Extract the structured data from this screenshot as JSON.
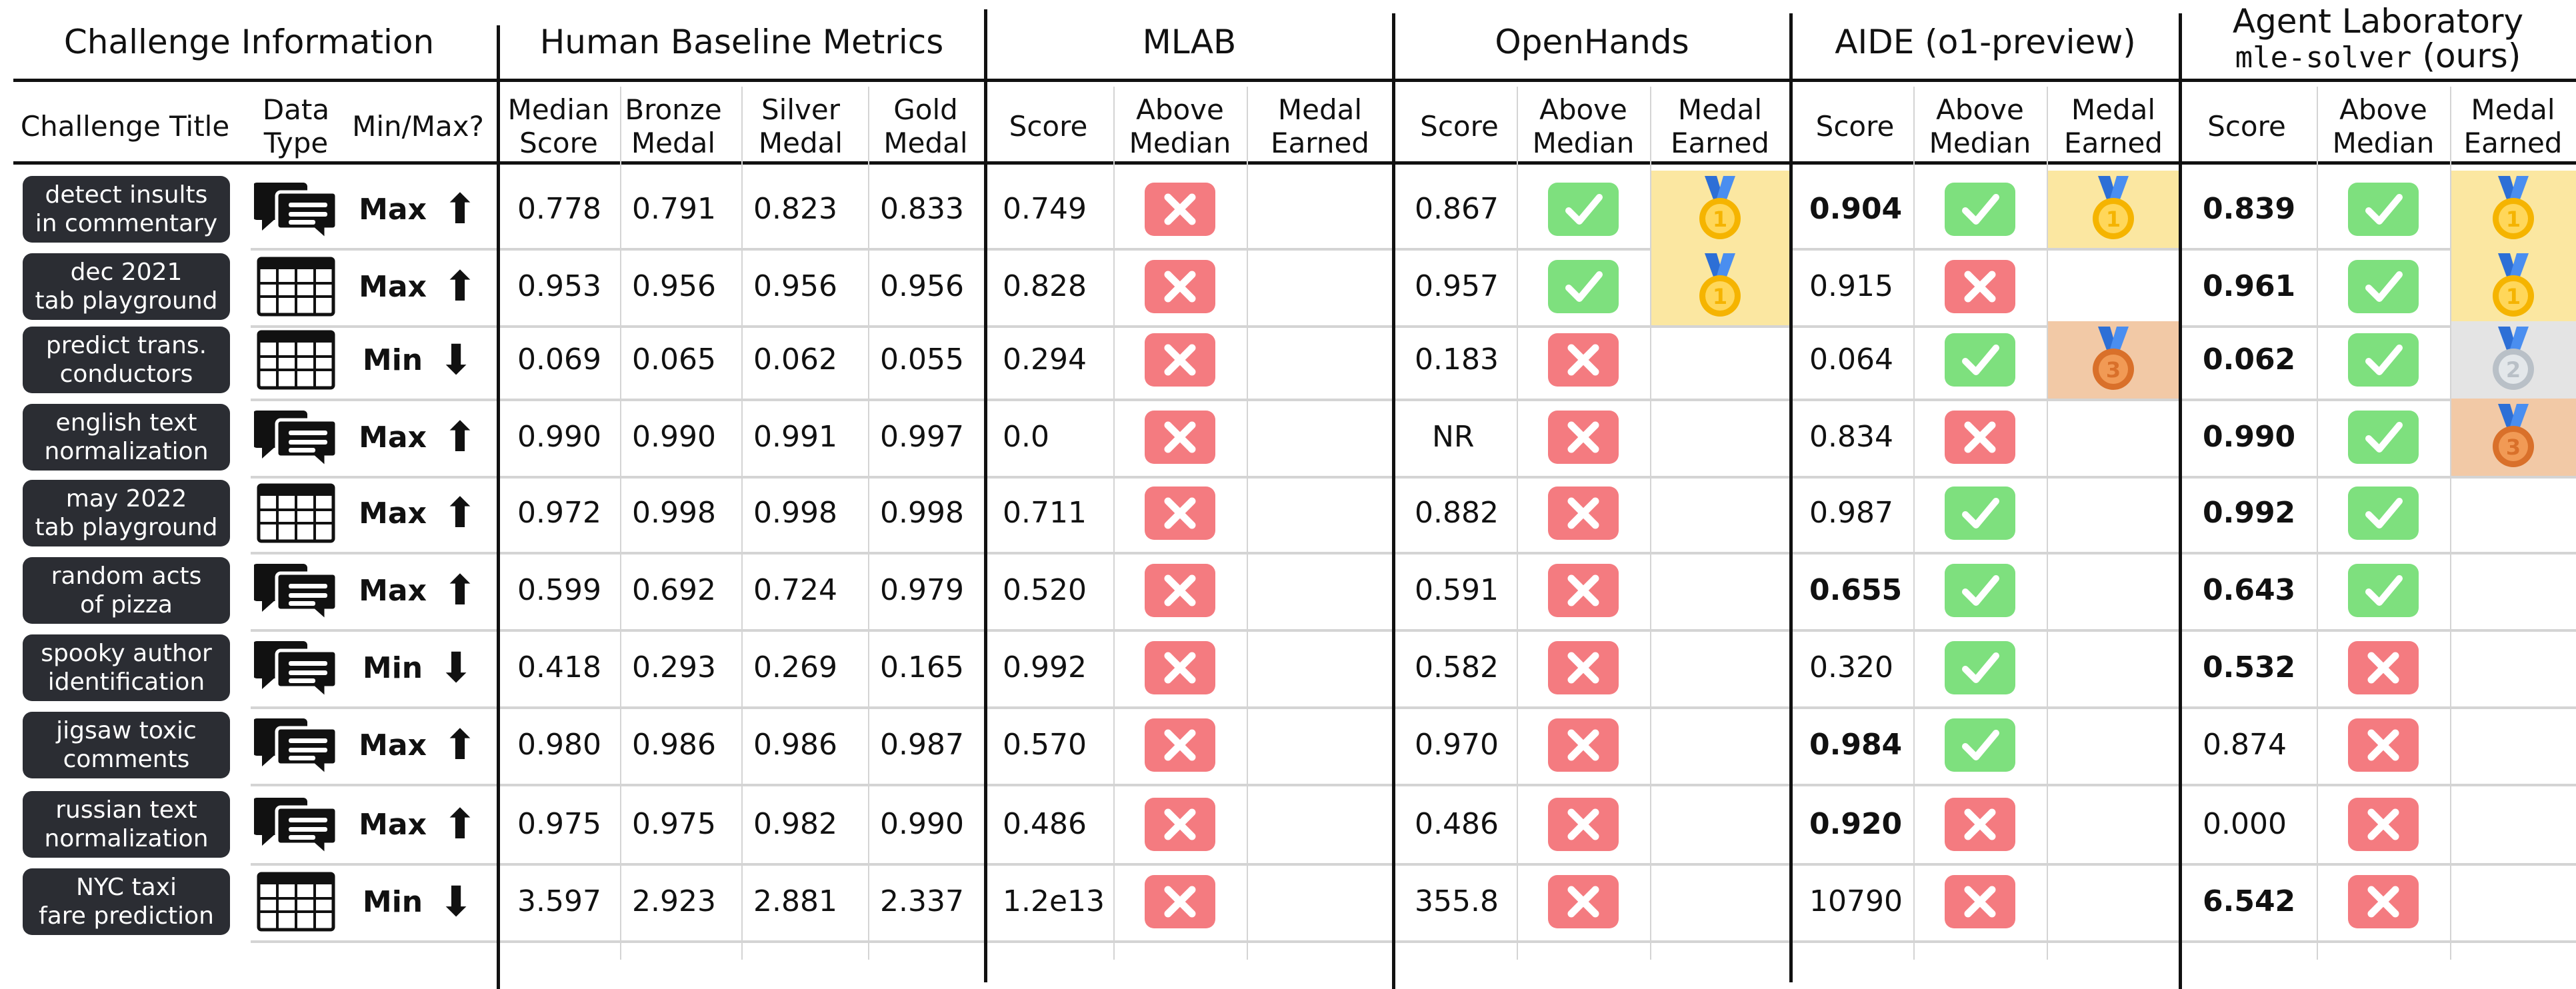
{
  "groups": {
    "challenge": "Challenge Information",
    "human": "Human Baseline Metrics",
    "mlab": "MLAB",
    "openhands": "OpenHands",
    "aide": "AIDE (o1-preview)",
    "agentlab_line1": "Agent Laboratory",
    "agentlab_code": "mle-solver",
    "agentlab_suffix": " (ours)"
  },
  "columns": {
    "title": "Challenge Title",
    "type_line1": "Data",
    "type_line2": "Type",
    "minmax": "Min/Max?",
    "median_line1": "Median",
    "median_line2": "Score",
    "bronze_line1": "Bronze",
    "bronze_line2": "Medal",
    "silver_line1": "Silver",
    "silver_line2": "Medal",
    "gold_line1": "Gold",
    "gold_line2": "Medal",
    "score": "Score",
    "above_line1": "Above",
    "above_line2": "Median",
    "medal_line1": "Medal",
    "medal_line2": "Earned"
  },
  "colors": {
    "check_bg": "#7ee07e",
    "cross_bg": "#f47b80",
    "gold_bg": "#fbe7a1",
    "bronze_bg": "#f2c9a6",
    "silver_bg": "#e4e4e4",
    "badge_bg": "#2b2d33"
  },
  "rows": [
    {
      "title1": "detect insults",
      "title2": "in commentary",
      "type": "text",
      "dir": "Max",
      "arrow": "⬆",
      "median": "0.778",
      "bronze": "0.791",
      "silver": "0.823",
      "gold": "0.833",
      "mlab": {
        "score": "0.749",
        "bold": false,
        "above": "cross",
        "medal": ""
      },
      "openhands": {
        "score": "0.867",
        "bold": false,
        "above": "check",
        "medal": "gold"
      },
      "aide": {
        "score": "0.904",
        "bold": true,
        "above": "check",
        "medal": "gold"
      },
      "ours": {
        "score": "0.839",
        "bold": true,
        "above": "check",
        "medal": "gold"
      }
    },
    {
      "title1": "dec 2021",
      "title2": "tab playground",
      "type": "table",
      "dir": "Max",
      "arrow": "⬆",
      "median": "0.953",
      "bronze": "0.956",
      "silver": "0.956",
      "gold": "0.956",
      "mlab": {
        "score": "0.828",
        "bold": false,
        "above": "cross",
        "medal": ""
      },
      "openhands": {
        "score": "0.957",
        "bold": false,
        "above": "check",
        "medal": "gold"
      },
      "aide": {
        "score": "0.915",
        "bold": false,
        "above": "cross",
        "medal": ""
      },
      "ours": {
        "score": "0.961",
        "bold": true,
        "above": "check",
        "medal": "gold"
      }
    },
    {
      "title1": "predict trans.",
      "title2": "conductors",
      "type": "table",
      "dir": "Min",
      "arrow": "⬇",
      "median": "0.069",
      "bronze": "0.065",
      "silver": "0.062",
      "gold": "0.055",
      "mlab": {
        "score": "0.294",
        "bold": false,
        "above": "cross",
        "medal": ""
      },
      "openhands": {
        "score": "0.183",
        "bold": false,
        "above": "cross",
        "medal": ""
      },
      "aide": {
        "score": "0.064",
        "bold": false,
        "above": "check",
        "medal": "bronze"
      },
      "ours": {
        "score": "0.062",
        "bold": true,
        "above": "check",
        "medal": "silver"
      }
    },
    {
      "title1": "english text",
      "title2": "normalization",
      "type": "text",
      "dir": "Max",
      "arrow": "⬆",
      "median": "0.990",
      "bronze": "0.990",
      "silver": "0.991",
      "gold": "0.997",
      "mlab": {
        "score": "0.0",
        "bold": false,
        "above": "cross",
        "medal": ""
      },
      "openhands": {
        "score": "NR",
        "bold": false,
        "above": "cross",
        "medal": ""
      },
      "aide": {
        "score": "0.834",
        "bold": false,
        "above": "cross",
        "medal": ""
      },
      "ours": {
        "score": "0.990",
        "bold": true,
        "above": "check",
        "medal": "bronze"
      }
    },
    {
      "title1": "may 2022",
      "title2": "tab playground",
      "type": "table",
      "dir": "Max",
      "arrow": "⬆",
      "median": "0.972",
      "bronze": "0.998",
      "silver": "0.998",
      "gold": "0.998",
      "mlab": {
        "score": "0.711",
        "bold": false,
        "above": "cross",
        "medal": ""
      },
      "openhands": {
        "score": "0.882",
        "bold": false,
        "above": "cross",
        "medal": ""
      },
      "aide": {
        "score": "0.987",
        "bold": false,
        "above": "check",
        "medal": ""
      },
      "ours": {
        "score": "0.992",
        "bold": true,
        "above": "check",
        "medal": ""
      }
    },
    {
      "title1": "random acts",
      "title2": "of pizza",
      "type": "text",
      "dir": "Max",
      "arrow": "⬆",
      "median": "0.599",
      "bronze": "0.692",
      "silver": "0.724",
      "gold": "0.979",
      "mlab": {
        "score": "0.520",
        "bold": false,
        "above": "cross",
        "medal": ""
      },
      "openhands": {
        "score": "0.591",
        "bold": false,
        "above": "cross",
        "medal": ""
      },
      "aide": {
        "score": "0.655",
        "bold": true,
        "above": "check",
        "medal": ""
      },
      "ours": {
        "score": "0.643",
        "bold": true,
        "above": "check",
        "medal": ""
      }
    },
    {
      "title1": "spooky author",
      "title2": "identification",
      "type": "text",
      "dir": "Min",
      "arrow": "⬇",
      "median": "0.418",
      "bronze": "0.293",
      "silver": "0.269",
      "gold": "0.165",
      "mlab": {
        "score": "0.992",
        "bold": false,
        "above": "cross",
        "medal": ""
      },
      "openhands": {
        "score": "0.582",
        "bold": false,
        "above": "cross",
        "medal": ""
      },
      "aide": {
        "score": "0.320",
        "bold": false,
        "above": "check",
        "medal": ""
      },
      "ours": {
        "score": "0.532",
        "bold": true,
        "above": "cross",
        "medal": ""
      }
    },
    {
      "title1": "jigsaw toxic",
      "title2": "comments",
      "type": "text",
      "dir": "Max",
      "arrow": "⬆",
      "median": "0.980",
      "bronze": "0.986",
      "silver": "0.986",
      "gold": "0.987",
      "mlab": {
        "score": "0.570",
        "bold": false,
        "above": "cross",
        "medal": ""
      },
      "openhands": {
        "score": "0.970",
        "bold": false,
        "above": "cross",
        "medal": ""
      },
      "aide": {
        "score": "0.984",
        "bold": true,
        "above": "check",
        "medal": ""
      },
      "ours": {
        "score": "0.874",
        "bold": false,
        "above": "cross",
        "medal": ""
      }
    },
    {
      "title1": "russian text",
      "title2": "normalization",
      "type": "text",
      "dir": "Max",
      "arrow": "⬆",
      "median": "0.975",
      "bronze": "0.975",
      "silver": "0.982",
      "gold": "0.990",
      "mlab": {
        "score": "0.486",
        "bold": false,
        "above": "cross",
        "medal": ""
      },
      "openhands": {
        "score": "0.486",
        "bold": false,
        "above": "cross",
        "medal": ""
      },
      "aide": {
        "score": "0.920",
        "bold": true,
        "above": "cross",
        "medal": ""
      },
      "ours": {
        "score": "0.000",
        "bold": false,
        "above": "cross",
        "medal": ""
      }
    },
    {
      "title1": "NYC taxi",
      "title2": "fare prediction",
      "type": "table",
      "dir": "Min",
      "arrow": "⬇",
      "median": "3.597",
      "bronze": "2.923",
      "silver": "2.881",
      "gold": "2.337",
      "mlab": {
        "score": "1.2e13",
        "bold": false,
        "above": "cross",
        "medal": ""
      },
      "openhands": {
        "score": "355.8",
        "bold": false,
        "above": "cross",
        "medal": ""
      },
      "aide": {
        "score": "10790",
        "bold": false,
        "above": "cross",
        "medal": ""
      },
      "ours": {
        "score": "6.542",
        "bold": true,
        "above": "cross",
        "medal": ""
      }
    }
  ]
}
